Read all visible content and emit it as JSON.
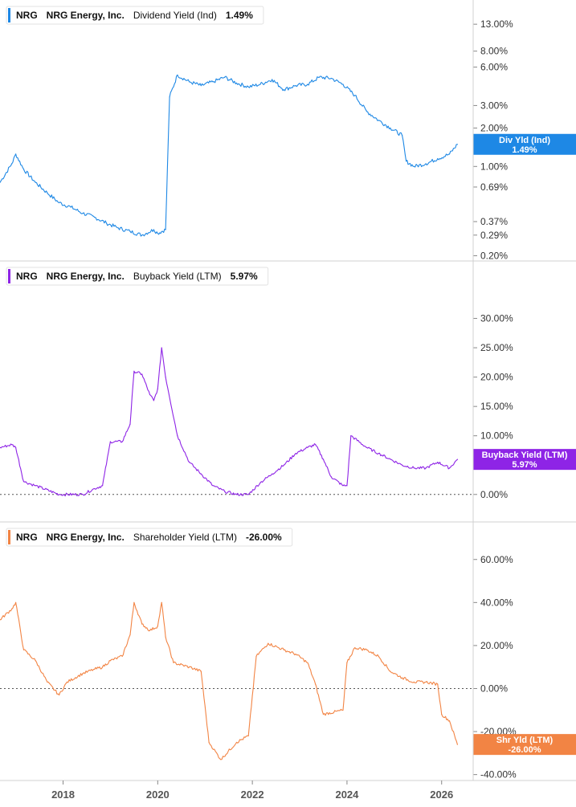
{
  "chart_data": [
    {
      "type": "line",
      "ticker": "NRG",
      "company": "NRG Energy, Inc.",
      "metric": "Dividend Yield (Ind)",
      "value_label": "1.49%",
      "tag_line1": "Div Yld (Ind)",
      "tag_line2": "1.49%",
      "color": "#1e88e5",
      "scale": "log",
      "ylim": [
        0.19,
        15.5
      ],
      "yticks": [
        {
          "v": 13.0,
          "label": "13.00%"
        },
        {
          "v": 8.0,
          "label": "8.00%"
        },
        {
          "v": 6.0,
          "label": "6.00%"
        },
        {
          "v": 3.0,
          "label": "3.00%"
        },
        {
          "v": 2.0,
          "label": "2.00%"
        },
        {
          "v": 1.0,
          "label": "1.00%"
        },
        {
          "v": 0.69,
          "label": "0.69%"
        },
        {
          "v": 0.37,
          "label": "0.37%"
        },
        {
          "v": 0.29,
          "label": "0.29%"
        },
        {
          "v": 0.2,
          "label": "0.20%"
        }
      ],
      "x": [
        "2016-09",
        "2016-12",
        "2017-01",
        "2017-03",
        "2017-06",
        "2017-09",
        "2017-12",
        "2018-03",
        "2018-06",
        "2018-09",
        "2018-12",
        "2019-03",
        "2019-06",
        "2019-09",
        "2019-12",
        "2020-01",
        "2020-03",
        "2020-04",
        "2020-06",
        "2020-09",
        "2020-12",
        "2021-03",
        "2021-06",
        "2021-09",
        "2021-12",
        "2022-03",
        "2022-06",
        "2022-09",
        "2022-12",
        "2023-03",
        "2023-06",
        "2023-09",
        "2023-12",
        "2024-03",
        "2024-06",
        "2024-09",
        "2024-12",
        "2025-03",
        "2025-04",
        "2025-06",
        "2025-09",
        "2025-12",
        "2026-03",
        "2026-05"
      ],
      "values": [
        0.75,
        1.05,
        1.25,
        0.95,
        0.75,
        0.62,
        0.52,
        0.48,
        0.43,
        0.4,
        0.36,
        0.33,
        0.31,
        0.29,
        0.32,
        0.3,
        0.32,
        3.5,
        5.2,
        4.6,
        4.3,
        4.6,
        5.0,
        4.5,
        4.2,
        4.4,
        4.8,
        4.0,
        4.3,
        4.4,
        5.0,
        4.9,
        4.4,
        3.6,
        2.7,
        2.3,
        2.0,
        1.75,
        1.1,
        1.0,
        1.05,
        1.15,
        1.25,
        1.49
      ]
    },
    {
      "type": "line",
      "ticker": "NRG",
      "company": "NRG Energy, Inc.",
      "metric": "Buyback Yield (LTM)",
      "value_label": "5.97%",
      "tag_line1": "Buyback Yield (LTM)",
      "tag_line2": "5.97%",
      "color": "#8e24e6",
      "scale": "linear",
      "ylim": [
        -4,
        35
      ],
      "zero_line": true,
      "yticks": [
        {
          "v": 30,
          "label": "30.00%"
        },
        {
          "v": 25,
          "label": "25.00%"
        },
        {
          "v": 20,
          "label": "20.00%"
        },
        {
          "v": 15,
          "label": "15.00%"
        },
        {
          "v": 10,
          "label": "10.00%"
        },
        {
          "v": 5,
          "label": "5.00%"
        },
        {
          "v": 0,
          "label": "0.00%"
        }
      ],
      "x": [
        "2016-09",
        "2016-12",
        "2017-01",
        "2017-03",
        "2017-06",
        "2017-12",
        "2018-06",
        "2018-09",
        "2018-11",
        "2019-01",
        "2019-04",
        "2019-06",
        "2019-07",
        "2019-09",
        "2019-11",
        "2019-12",
        "2020-01",
        "2020-02",
        "2020-03",
        "2020-06",
        "2020-09",
        "2020-12",
        "2021-03",
        "2021-06",
        "2021-09",
        "2021-12",
        "2022-03",
        "2022-06",
        "2022-09",
        "2022-12",
        "2023-03",
        "2023-05",
        "2023-07",
        "2023-09",
        "2023-12",
        "2024-01",
        "2024-02",
        "2024-06",
        "2024-09",
        "2024-12",
        "2025-03",
        "2025-06",
        "2025-09",
        "2025-12",
        "2026-03",
        "2026-05"
      ],
      "values": [
        8,
        8.5,
        8,
        2.2,
        1.5,
        0,
        0,
        1,
        1.5,
        9,
        9,
        12,
        21,
        20.5,
        17,
        16,
        18,
        25,
        20,
        10,
        5.5,
        3.5,
        1.5,
        0.5,
        0,
        0,
        2,
        3.5,
        5,
        7,
        8,
        8.5,
        6,
        3,
        1.5,
        1.5,
        10,
        8,
        7,
        6,
        5,
        4.5,
        4.5,
        5.5,
        4.5,
        5.97
      ]
    },
    {
      "type": "line",
      "ticker": "NRG",
      "company": "NRG Energy, Inc.",
      "metric": "Shareholder Yield (LTM)",
      "value_label": "-26.00%",
      "tag_line1": "Shr Yld (LTM)",
      "tag_line2": "-26.00%",
      "color": "#f28444",
      "scale": "linear",
      "ylim": [
        -42,
        67
      ],
      "zero_line": true,
      "yticks": [
        {
          "v": 60,
          "label": "60.00%"
        },
        {
          "v": 40,
          "label": "40.00%"
        },
        {
          "v": 20,
          "label": "20.00%"
        },
        {
          "v": 0,
          "label": "0.00%"
        },
        {
          "v": -20,
          "label": "-20.00%"
        },
        {
          "v": -40,
          "label": "-40.00%"
        }
      ],
      "x": [
        "2016-09",
        "2016-12",
        "2017-01",
        "2017-03",
        "2017-06",
        "2017-09",
        "2017-12",
        "2018-02",
        "2018-06",
        "2018-09",
        "2018-11",
        "2019-01",
        "2019-04",
        "2019-06",
        "2019-07",
        "2019-09",
        "2019-11",
        "2020-01",
        "2020-02",
        "2020-03",
        "2020-05",
        "2020-09",
        "2020-12",
        "2021-02",
        "2021-05",
        "2021-09",
        "2021-12",
        "2022-02",
        "2022-05",
        "2022-09",
        "2022-12",
        "2023-03",
        "2023-05",
        "2023-07",
        "2023-12",
        "2024-01",
        "2024-03",
        "2024-06",
        "2024-09",
        "2024-12",
        "2025-03",
        "2025-06",
        "2025-09",
        "2025-12",
        "2026-01",
        "2026-03",
        "2026-05"
      ],
      "values": [
        32,
        37,
        40,
        18,
        13,
        3,
        -3,
        3,
        7,
        9,
        10,
        13,
        15,
        25,
        40,
        30,
        27,
        29,
        40,
        24,
        12,
        10,
        8,
        -25,
        -33,
        -25,
        -22,
        15,
        21,
        18,
        16,
        12,
        2,
        -12,
        -10,
        12,
        19,
        18,
        15,
        8,
        5,
        3,
        3,
        2,
        -12,
        -15,
        -26
      ]
    }
  ],
  "x_axis": {
    "ticks": [
      {
        "x": "2018-01",
        "label": "2018"
      },
      {
        "x": "2020-01",
        "label": "2020"
      },
      {
        "x": "2022-01",
        "label": "2022"
      },
      {
        "x": "2024-01",
        "label": "2024"
      },
      {
        "x": "2026-01",
        "label": "2026"
      }
    ],
    "range": [
      "2016-09",
      "2026-09"
    ]
  },
  "colors": {
    "grid_border": "#d0d0d0",
    "zero_line": "#555555",
    "tick_text": "#333333"
  }
}
